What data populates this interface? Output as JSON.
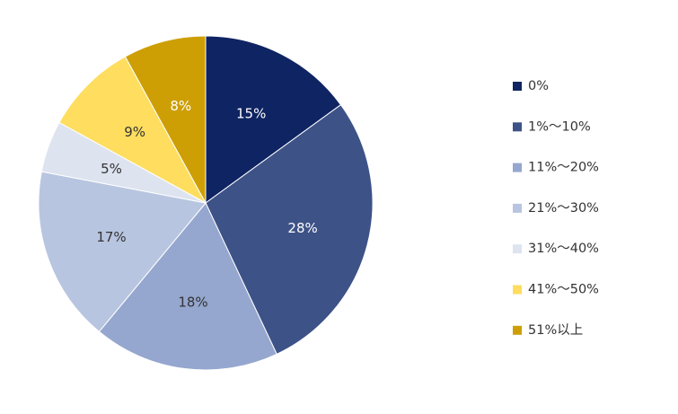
{
  "chart_data": {
    "type": "pie",
    "start_angle_deg": 0,
    "direction": "clockwise",
    "legend_position": "right",
    "categories": [
      "0%",
      "1%～10%",
      "11%～20%",
      "21%～30%",
      "31%～40%",
      "41%～50%",
      "51%以上"
    ],
    "values": [
      15,
      28,
      18,
      17,
      5,
      9,
      8
    ],
    "data_labels": [
      "15%",
      "28%",
      "18%",
      "17%",
      "5%",
      "9%",
      "8%"
    ],
    "colors": [
      "#0f2462",
      "#3d5287",
      "#95a7cf",
      "#b8c5e0",
      "#dde3ef",
      "#fedd5f",
      "#cd9f05"
    ],
    "label_colors": [
      "#ffffff",
      "#ffffff",
      "#333333",
      "#333333",
      "#333333",
      "#333333",
      "#ffffff"
    ]
  }
}
